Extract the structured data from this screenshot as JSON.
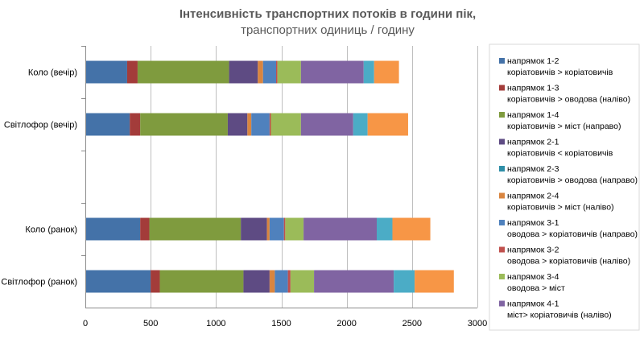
{
  "chart_data": {
    "type": "bar",
    "orientation": "horizontal",
    "stacked": true,
    "title": "Інтенсивність транспортних потоків в години пік,",
    "subtitle": "транспортних одиниць / годину",
    "xlabel": "",
    "ylabel": "",
    "xlim": [
      0,
      3000
    ],
    "x_ticks": [
      0,
      500,
      1000,
      1500,
      2000,
      2500,
      3000
    ],
    "grid": true,
    "legend_position": "right",
    "categories": [
      "Коло (вечір)",
      "Світлофор (вечір)",
      "",
      "Коло (ранок)",
      "Світлофор (ранок)"
    ],
    "series": [
      {
        "name": "напрямок 1-2",
        "sublabel": "коріатовичів > коріатовичів",
        "color": "#4472a8",
        "values": [
          320,
          340,
          null,
          420,
          500
        ]
      },
      {
        "name": "напрямок 1-3",
        "sublabel": "коріатовичів > оводова (наліво)",
        "color": "#a33c3a",
        "values": [
          80,
          80,
          null,
          70,
          70
        ]
      },
      {
        "name": "напрямок 1-4",
        "sublabel": "коріатовичів > міст (направо)",
        "color": "#7f9b3e",
        "values": [
          700,
          670,
          null,
          700,
          640
        ]
      },
      {
        "name": "напрямок 2-1",
        "sublabel": "коріатовичів < коріатовичів",
        "color": "#5e4b83",
        "values": [
          220,
          150,
          null,
          200,
          200
        ]
      },
      {
        "name": "напрямок 2-3",
        "sublabel": "коріатовичів > оводова (направо)",
        "color": "#2e8ea7",
        "values": [
          0,
          0,
          null,
          0,
          0
        ]
      },
      {
        "name": "напрямок 2-4",
        "sublabel": "коріатовичів > міст (наліво)",
        "color": "#d9853f",
        "values": [
          40,
          30,
          null,
          20,
          40
        ]
      },
      {
        "name": "напрямок 3-1",
        "sublabel": "оводова > коріатовичів (направо)",
        "color": "#4f81bd",
        "values": [
          100,
          140,
          null,
          110,
          100
        ]
      },
      {
        "name": "напрямок 3-2",
        "sublabel": "оводова > коріатовичів (наліво)",
        "color": "#c0504d",
        "values": [
          10,
          10,
          null,
          10,
          20
        ]
      },
      {
        "name": "напрямок 3-4",
        "sublabel": "оводова > міст",
        "color": "#9bbb59",
        "values": [
          180,
          230,
          null,
          140,
          180
        ]
      },
      {
        "name": "напрямок 4-1",
        "sublabel": "міст> коріатовичів (наліво)",
        "color": "#8064a2",
        "values": [
          480,
          400,
          null,
          560,
          610
        ]
      },
      {
        "name": "",
        "sublabel": "",
        "color": "#4bacc6",
        "values": [
          80,
          110,
          null,
          120,
          160
        ]
      },
      {
        "name": "",
        "sublabel": "",
        "color": "#f79646",
        "values": [
          190,
          310,
          null,
          290,
          300
        ]
      }
    ]
  }
}
